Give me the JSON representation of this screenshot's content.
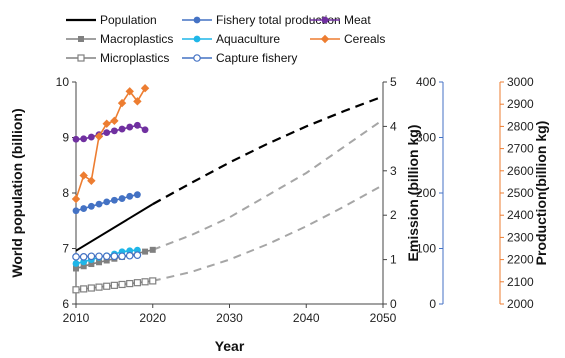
{
  "chart_data": {
    "type": "line",
    "xlabel": "Year",
    "x_ticks": [
      2010,
      2020,
      2030,
      2040,
      2050
    ],
    "xlim": [
      2010,
      2050
    ],
    "axes": {
      "population": {
        "label": "World population (billion)",
        "ticks": [
          6,
          7,
          8,
          9,
          10
        ],
        "ylim": [
          6,
          10
        ],
        "color": "#111111"
      },
      "emission": {
        "label": "Emission (billion kg)",
        "ticks": [
          0,
          1,
          2,
          3,
          4,
          5
        ],
        "ylim": [
          0,
          5
        ],
        "color": "#111111"
      },
      "fishery": {
        "ticks": [
          0,
          100,
          200,
          300,
          400
        ],
        "ylim": [
          0,
          400
        ],
        "color": "#4472c4"
      },
      "production": {
        "label": "Production(billion kg)",
        "ticks": [
          2000,
          2100,
          2200,
          2300,
          2400,
          2500,
          2600,
          2700,
          2800,
          2900,
          3000
        ],
        "ylim": [
          2000,
          3000
        ],
        "color": "#ed7d31"
      }
    },
    "series": [
      {
        "name": "Population",
        "axis": "population",
        "color": "#000000",
        "marker": "none",
        "historical": {
          "x": [
            2010,
            2020
          ],
          "y": [
            6.96,
            7.8
          ]
        },
        "projection": {
          "x": [
            2020,
            2025,
            2030,
            2035,
            2040,
            2045,
            2050
          ],
          "y": [
            7.8,
            8.18,
            8.55,
            8.89,
            9.2,
            9.48,
            9.74
          ]
        }
      },
      {
        "name": "Macroplastics",
        "axis": "emission",
        "color": "#808080",
        "marker": "square-filled",
        "x": [
          2010,
          2011,
          2012,
          2013,
          2014,
          2015,
          2016,
          2017,
          2018,
          2019,
          2020
        ],
        "y": [
          0.8,
          0.85,
          0.9,
          0.94,
          0.98,
          1.02,
          1.06,
          1.1,
          1.14,
          1.18,
          1.22
        ],
        "projection": {
          "x": [
            2020,
            2025,
            2030,
            2035,
            2040,
            2045,
            2050
          ],
          "y": [
            1.22,
            1.55,
            1.95,
            2.45,
            2.95,
            3.55,
            4.15
          ]
        }
      },
      {
        "name": "Microplastics",
        "axis": "emission",
        "color": "#808080",
        "marker": "square-open",
        "x": [
          2010,
          2011,
          2012,
          2013,
          2014,
          2015,
          2016,
          2017,
          2018,
          2019,
          2020
        ],
        "y": [
          0.32,
          0.34,
          0.36,
          0.38,
          0.4,
          0.42,
          0.44,
          0.46,
          0.48,
          0.5,
          0.52
        ],
        "projection": {
          "x": [
            2020,
            2025,
            2030,
            2035,
            2040,
            2045,
            2050
          ],
          "y": [
            0.52,
            0.72,
            1.0,
            1.35,
            1.75,
            2.2,
            2.68
          ]
        }
      },
      {
        "name": "Fishery total production",
        "axis": "fishery",
        "color": "#4472c4",
        "marker": "circle-filled",
        "x": [
          2010,
          2011,
          2012,
          2013,
          2014,
          2015,
          2016,
          2017,
          2018
        ],
        "y": [
          168,
          172,
          176,
          180,
          184,
          187,
          190,
          194,
          197
        ]
      },
      {
        "name": "Aquaculture",
        "axis": "fishery",
        "color": "#1fb6e8",
        "marker": "circle-filled",
        "x": [
          2010,
          2011,
          2012,
          2013,
          2014,
          2015,
          2016,
          2017,
          2018
        ],
        "y": [
          73,
          76,
          80,
          84,
          87,
          90,
          94,
          96,
          97
        ]
      },
      {
        "name": "Capture fishery",
        "axis": "fishery",
        "color": "#4472c4",
        "marker": "circle-open",
        "x": [
          2010,
          2011,
          2012,
          2013,
          2014,
          2015,
          2016,
          2017,
          2018
        ],
        "y": [
          85,
          85,
          86,
          86,
          86,
          86,
          86,
          87,
          88
        ]
      },
      {
        "name": "Meat",
        "axis": "production",
        "color": "#7030a0",
        "marker": "circle-filled",
        "x": [
          2010,
          2011,
          2012,
          2013,
          2014,
          2015,
          2016,
          2017,
          2018,
          2019
        ],
        "y": [
          2742,
          2744,
          2752,
          2763,
          2772,
          2780,
          2788,
          2797,
          2805,
          2785
        ]
      },
      {
        "name": "Cereals",
        "axis": "production",
        "color": "#ed7d31",
        "marker": "diamond-filled",
        "x": [
          2010,
          2011,
          2012,
          2013,
          2014,
          2015,
          2016,
          2017,
          2018,
          2019
        ],
        "y": [
          2473,
          2579,
          2555,
          2755,
          2812,
          2825,
          2905,
          2958,
          2913,
          2972
        ]
      }
    ],
    "legend": {
      "placement": "top",
      "rows": [
        [
          "Population",
          "Fishery total production",
          "Meat"
        ],
        [
          "Macroplastics",
          "Aquaculture",
          "Cereals"
        ],
        [
          "Microplastics",
          "Capture fishery"
        ]
      ]
    }
  }
}
